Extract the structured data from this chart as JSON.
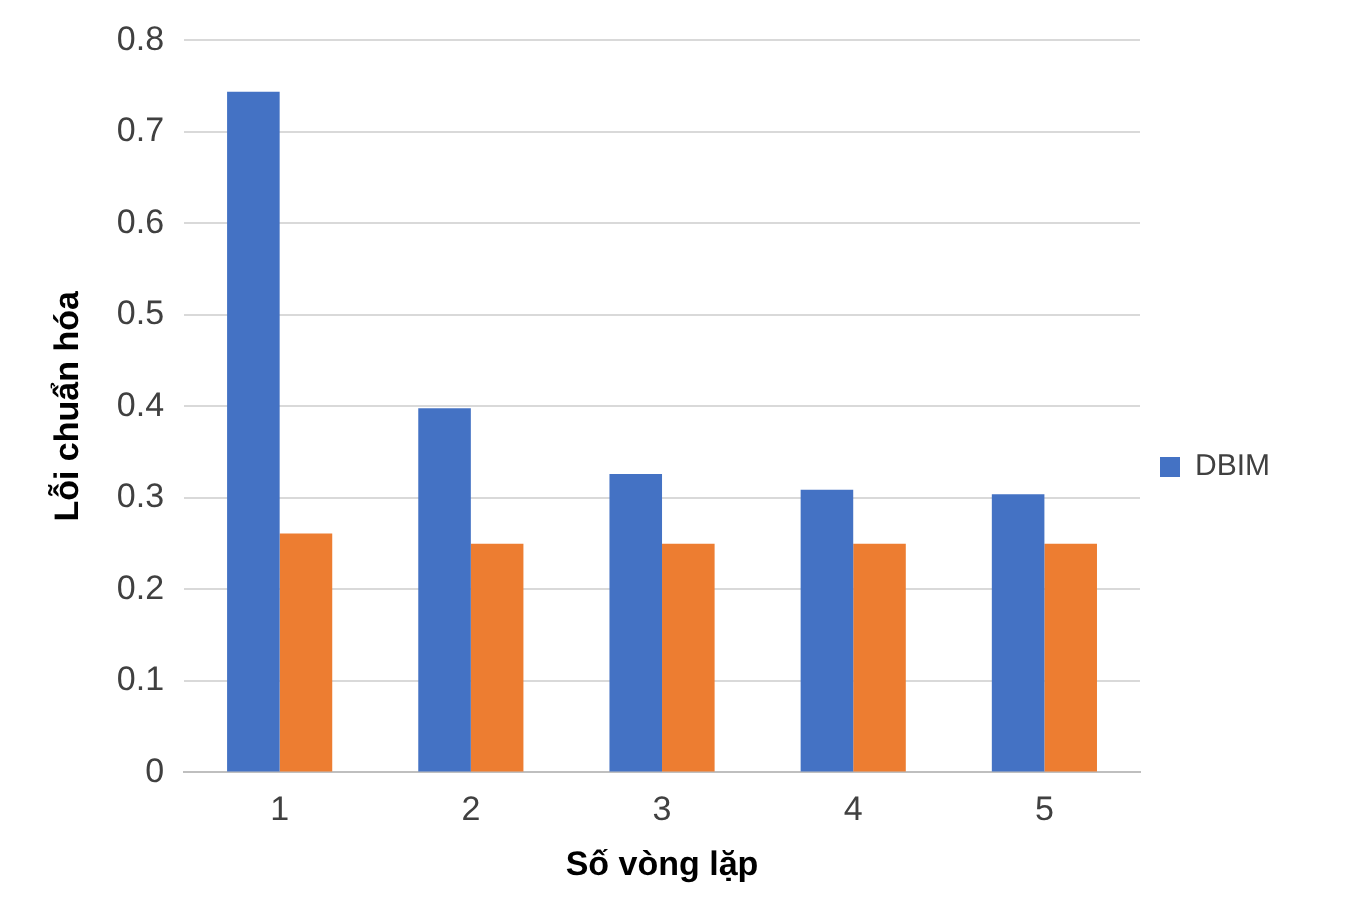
{
  "chart_data": {
    "type": "bar",
    "xlabel": "Số vòng lặp",
    "ylabel": "Lỗi chuẩn hóa",
    "categories": [
      "1",
      "2",
      "3",
      "4",
      "5"
    ],
    "series": [
      {
        "name": "DBIM",
        "color": "#4472c4",
        "values": [
          0.744,
          0.398,
          0.326,
          0.309,
          0.304
        ]
      },
      {
        "color": "#ed7d31",
        "values": [
          0.261,
          0.25,
          0.25,
          0.25,
          0.25
        ]
      }
    ],
    "ylim": [
      0,
      0.8
    ],
    "yticks": [
      0,
      0.1,
      0.2,
      0.3,
      0.4,
      0.5,
      0.6,
      0.7,
      0.8
    ],
    "grid": "y",
    "legend": "right"
  }
}
